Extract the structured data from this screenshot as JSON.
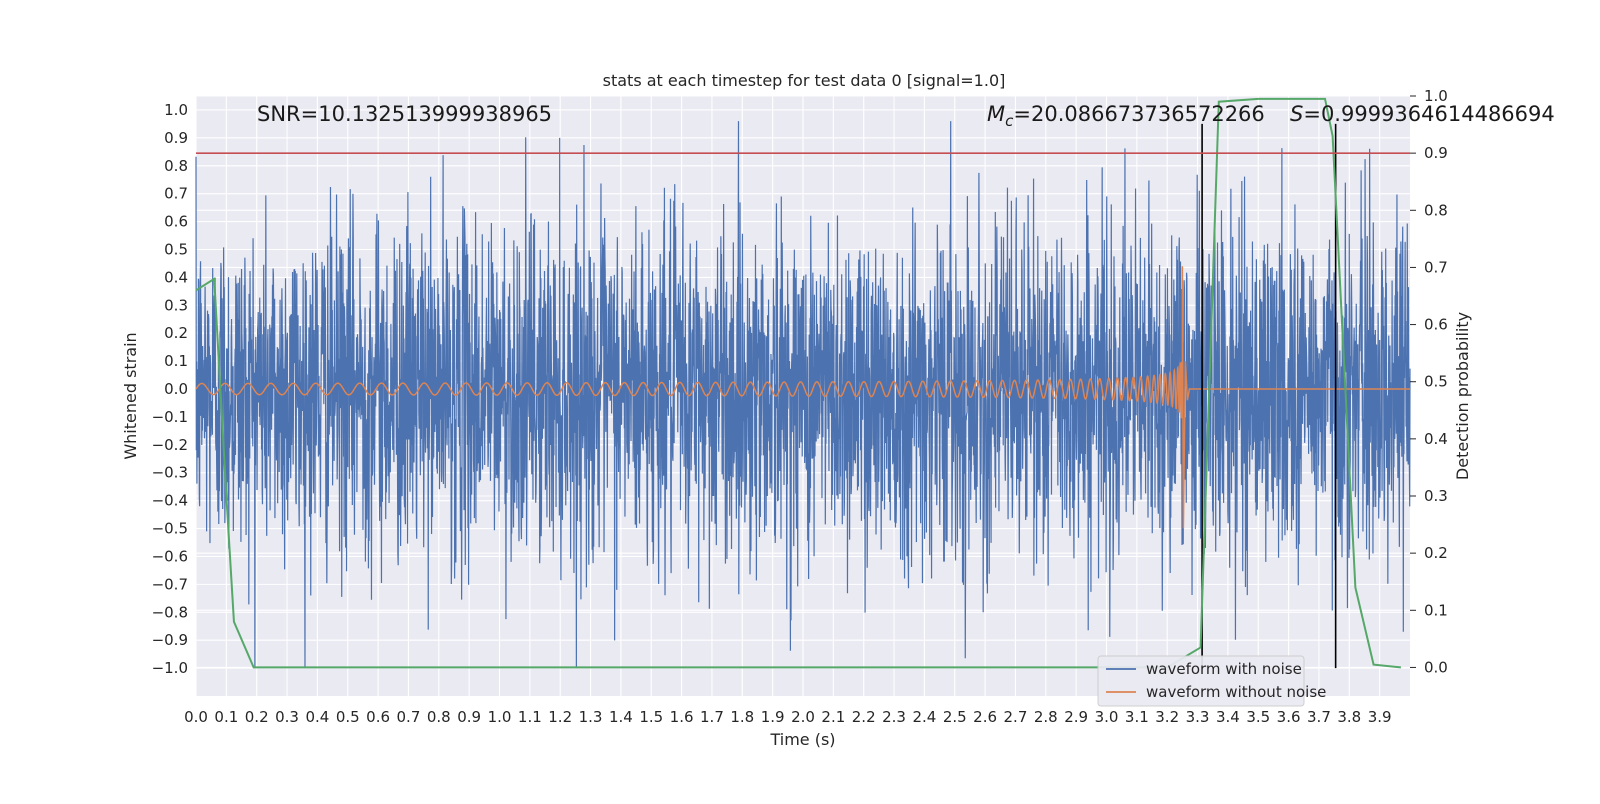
{
  "colors": {
    "background": "#eaeaf2",
    "grid": "#ffffff",
    "noisy": "#4c72b0",
    "clean": "#dd8452",
    "probability": "#55a868",
    "threshold": "#c44e52",
    "marker": "#000000"
  },
  "chart_data": {
    "type": "line",
    "title": "stats at each timestep for test data 0 [signal=1.0]",
    "xlabel": "Time (s)",
    "ylabel": "Whitened strain",
    "y2label": "Detection probability",
    "xlim": [
      0.0,
      4.0
    ],
    "ylim": [
      -1.1,
      1.05
    ],
    "y2lim": [
      -0.05,
      1.0
    ],
    "xticks": [
      "0.0",
      "0.1",
      "0.2",
      "0.3",
      "0.4",
      "0.5",
      "0.6",
      "0.7",
      "0.8",
      "0.9",
      "1.0",
      "1.1",
      "1.2",
      "1.3",
      "1.4",
      "1.5",
      "1.6",
      "1.7",
      "1.8",
      "1.9",
      "2.0",
      "2.1",
      "2.2",
      "2.3",
      "2.4",
      "2.5",
      "2.6",
      "2.7",
      "2.8",
      "2.9",
      "3.0",
      "3.1",
      "3.2",
      "3.3",
      "3.4",
      "3.5",
      "3.6",
      "3.7",
      "3.8",
      "3.9"
    ],
    "yticks": [
      "1.0",
      "0.9",
      "0.8",
      "0.7",
      "0.6",
      "0.5",
      "0.4",
      "0.3",
      "0.2",
      "0.1",
      "0.0",
      "−0.1",
      "−0.2",
      "−0.3",
      "−0.4",
      "−0.5",
      "−0.6",
      "−0.7",
      "−0.8",
      "−0.9",
      "−1.0"
    ],
    "y2ticks": [
      "1.0",
      "0.9",
      "0.8",
      "0.7",
      "0.6",
      "0.5",
      "0.4",
      "0.3",
      "0.2",
      "0.1",
      "0.0"
    ],
    "grid": true,
    "legend_position": "bottom-right",
    "annotations": {
      "snr": "SNR=10.132513999938965",
      "mc_symbol": "M",
      "mc_sub": "c",
      "mc_value": "=20.086673736572266",
      "s_symbol": "S",
      "s_value": "=0.9999364614486694"
    },
    "series": [
      {
        "name": "waveform with noise",
        "axis": "left",
        "style": "noise",
        "description_free": true,
        "t_range": [
          0.0,
          4.0
        ],
        "amplitude_rms": 0.3,
        "min": -1.0,
        "max": 0.96
      },
      {
        "name": "waveform without noise",
        "axis": "left",
        "style": "chirp",
        "t_start": 0.0,
        "t_merger": 3.25,
        "t_end": 4.0,
        "amp_start": 0.02,
        "amp_peak": 0.44,
        "amp_trough": -0.5
      },
      {
        "name": "detection probability",
        "axis": "right",
        "x": [
          0.0,
          0.06,
          0.1,
          0.125,
          0.19,
          1.0,
          2.0,
          3.0,
          3.2,
          3.31,
          3.37,
          3.5,
          3.72,
          3.745,
          3.82,
          3.88,
          3.97
        ],
        "y": [
          0.66,
          0.68,
          0.3,
          0.08,
          0.0,
          0.0,
          0.0,
          0.0,
          0.0,
          0.035,
          0.99,
          0.995,
          0.995,
          0.93,
          0.14,
          0.005,
          0.0
        ]
      }
    ],
    "threshold": {
      "axis": "right",
      "value": 0.9
    },
    "markers_x": [
      3.315,
      3.755
    ]
  }
}
